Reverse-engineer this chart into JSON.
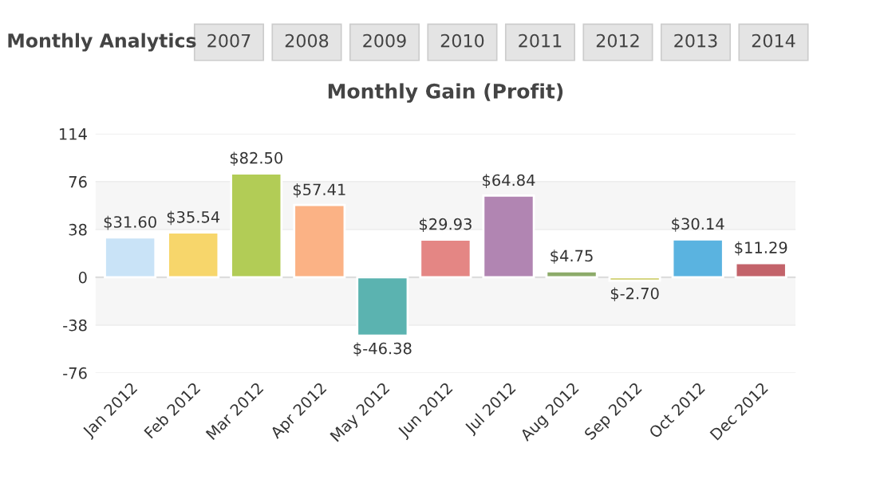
{
  "chart_data": {
    "type": "bar",
    "title": "Monthly Gain (Profit)",
    "annotations": [
      "Monthly Analytics",
      "2007",
      "2008",
      "2009",
      "2010",
      "2011",
      "2012",
      "2013",
      "2014"
    ],
    "categories": [
      "Jan 2012",
      "Feb 2012",
      "Mar 2012",
      "Apr 2012",
      "May 2012",
      "Jun 2012",
      "Jul 2012",
      "Aug 2012",
      "Sep 2012",
      "Oct 2012",
      "Dec 2012"
    ],
    "values": [
      31.6,
      35.54,
      82.5,
      57.41,
      -46.38,
      29.93,
      64.84,
      4.75,
      -2.7,
      30.14,
      11.29
    ],
    "value_labels": [
      "$31.60",
      "$35.54",
      "$82.50",
      "$57.41",
      "$-46.38",
      "$29.93",
      "$64.84",
      "$4.75",
      "$-2.70",
      "$30.14",
      "$11.29"
    ],
    "colors": [
      "#c9e3f7",
      "#f7d66b",
      "#b2cc56",
      "#fbb285",
      "#5bb3b0",
      "#e48684",
      "#b185b2",
      "#8dab6a",
      "#c8c85a",
      "#5ab3e0",
      "#c3636a"
    ],
    "ylim": [
      -76,
      114
    ],
    "yticks": [
      -76,
      -38,
      0,
      38,
      76,
      114
    ],
    "bands": [
      {
        "axis": "y",
        "from": 38,
        "to": 76,
        "color": "#f6f6f6"
      },
      {
        "axis": "y",
        "from": -38,
        "to": 0,
        "color": "#f6f6f6"
      }
    ],
    "grid": "y"
  }
}
